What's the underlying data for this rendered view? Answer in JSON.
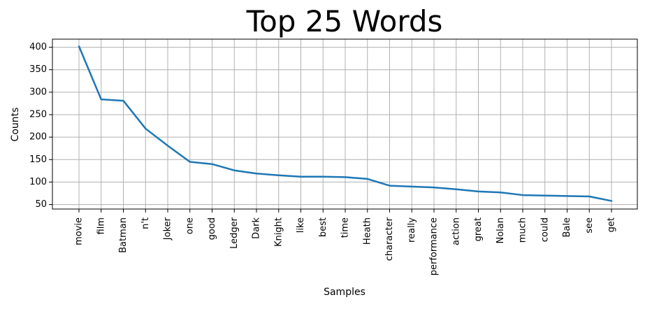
{
  "chart_data": {
    "type": "line",
    "title": "Top 25 Words",
    "xlabel": "Samples",
    "ylabel": "Counts",
    "categories": [
      "movie",
      "film",
      "Batman",
      "n't",
      "Joker",
      "one",
      "good",
      "Ledger",
      "Dark",
      "Knight",
      "like",
      "best",
      "time",
      "Heath",
      "character",
      "really",
      "performance",
      "action",
      "great",
      "Nolan",
      "much",
      "could",
      "Bale",
      "see",
      "get"
    ],
    "series": [
      {
        "values": [
          402,
          284,
          281,
          219,
          181,
          145,
          140,
          126,
          119,
          115,
          112,
          112,
          111,
          107,
          92,
          90,
          88,
          84,
          79,
          77,
          71,
          70,
          69,
          68,
          58
        ]
      }
    ],
    "yticks": [
      50,
      100,
      150,
      200,
      250,
      300,
      350,
      400
    ],
    "ylim": [
      40,
      418
    ],
    "grid": true,
    "line_color": "#1f77b4"
  }
}
